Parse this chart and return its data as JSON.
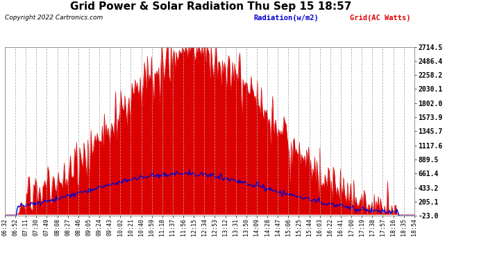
{
  "title": "Grid Power & Solar Radiation Thu Sep 15 18:57",
  "copyright": "Copyright 2022 Cartronics.com",
  "legend_radiation": "Radiation(w/m2)",
  "legend_grid": "Grid(AC Watts)",
  "ylabel_right_values": [
    2714.5,
    2486.4,
    2258.2,
    2030.1,
    1802.0,
    1573.9,
    1345.7,
    1117.6,
    889.5,
    661.4,
    433.2,
    205.1,
    -23.0
  ],
  "ymin": -23.0,
  "ymax": 2714.5,
  "background_color": "#ffffff",
  "plot_bg_color": "#ffffff",
  "grid_color": "#aaaaaa",
  "radiation_fill_color": "#dd0000",
  "radiation_line_color": "#dd0000",
  "grid_power_line_color": "#0000cc",
  "title_color": "#000000",
  "copyright_color": "#000000",
  "legend_radiation_color": "#0000cc",
  "legend_grid_color": "#dd0000",
  "tick_label_color": "#000000",
  "x_tick_labels": [
    "06:32",
    "06:52",
    "07:11",
    "07:30",
    "07:49",
    "08:08",
    "08:27",
    "08:46",
    "09:05",
    "09:24",
    "09:43",
    "10:02",
    "10:21",
    "10:40",
    "10:59",
    "11:18",
    "11:37",
    "11:56",
    "12:15",
    "12:34",
    "12:53",
    "13:12",
    "13:31",
    "13:50",
    "14:09",
    "14:28",
    "14:47",
    "15:06",
    "15:25",
    "15:44",
    "16:03",
    "16:22",
    "16:41",
    "17:00",
    "17:19",
    "17:38",
    "17:57",
    "18:16",
    "18:35",
    "18:54"
  ],
  "num_points": 400,
  "solar_peak": 2650,
  "grid_peak": 660
}
